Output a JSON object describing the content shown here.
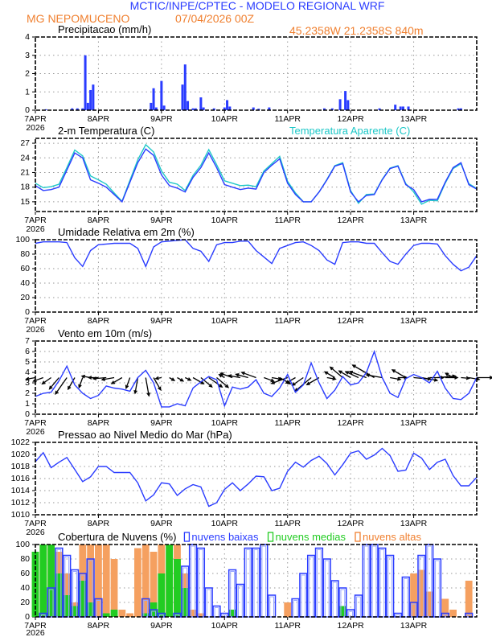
{
  "header": {
    "title": "MCTIC/INPE/CPTEC - MODELO REGIONAL WRF",
    "location": "MG NEPOMUCENO",
    "run": "07/04/2026 00Z",
    "coords": "45.2358W 21.2358S 840m"
  },
  "colors": {
    "title": "#2a3cff",
    "info": "#f08030",
    "line": "#2a3cff",
    "apparent": "#1fc8c8",
    "low": "#2a3cff",
    "mid": "#22cc22",
    "high": "#f5a060"
  },
  "x_tick_labels": [
    "7APR",
    "8APR",
    "9APR",
    "10APR",
    "11APR",
    "12APR",
    "13APR"
  ],
  "x_year_label": "2026",
  "chart_data": [
    {
      "type": "bar",
      "title": "Precipitacao (mm/h)",
      "ylim": [
        0,
        4
      ],
      "yticks": [
        "0",
        "1",
        "2",
        "3",
        "4"
      ],
      "grid": true,
      "x": [
        "07APR 04Z",
        "07APR 14Z",
        "07APR 16Z",
        "07APR 18Z",
        "07APR 19Z",
        "07APR 20Z",
        "07APR 21Z",
        "07APR 22Z",
        "08APR 16Z",
        "08APR 20Z",
        "08APR 21Z",
        "08APR 22Z",
        "09APR 00Z",
        "09APR 01Z",
        "09APR 08Z",
        "09APR 09Z",
        "09APR 10Z",
        "09APR 12Z",
        "09APR 13Z",
        "09APR 15Z",
        "09APR 16Z",
        "09APR 20Z",
        "10APR 00Z",
        "10APR 01Z",
        "10APR 02Z",
        "10APR 11Z",
        "10APR 13Z",
        "10APR 17Z",
        "11APR 14Z",
        "11APR 17Z",
        "11APR 20Z",
        "11APR 22Z",
        "11APR 23Z",
        "12APR 11Z",
        "12APR 17Z",
        "12APR 19Z",
        "12APR 20Z",
        "12APR 22Z",
        "13APR 17Z",
        "13APR 18Z"
      ],
      "values": [
        0.05,
        0.1,
        0.1,
        0.1,
        3.0,
        0.4,
        1.1,
        1.4,
        0.05,
        0.4,
        1.2,
        0.15,
        1.6,
        0.25,
        1.4,
        2.5,
        0.5,
        0.1,
        0.1,
        0.7,
        0.15,
        0.1,
        0.15,
        0.55,
        0.2,
        0.15,
        0.08,
        0.15,
        0.1,
        0.1,
        0.6,
        1.05,
        0.55,
        0.1,
        0.3,
        0.2,
        0.2,
        0.2,
        0.1,
        0.1
      ]
    },
    {
      "type": "line",
      "title": "2-m Temperatura (C)",
      "ylim": [
        13,
        28
      ],
      "yticks": [
        "15",
        "18",
        "21",
        "24",
        "27"
      ],
      "grid": true,
      "x": [
        "07APR 00Z",
        "07APR 03Z",
        "07APR 06Z",
        "07APR 09Z",
        "07APR 12Z",
        "07APR 15Z",
        "07APR 18Z",
        "07APR 21Z",
        "08APR 00Z",
        "08APR 03Z",
        "08APR 06Z",
        "08APR 09Z",
        "08APR 12Z",
        "08APR 15Z",
        "08APR 18Z",
        "08APR 21Z",
        "09APR 00Z",
        "09APR 03Z",
        "09APR 06Z",
        "09APR 09Z",
        "09APR 12Z",
        "09APR 15Z",
        "09APR 18Z",
        "09APR 21Z",
        "10APR 00Z",
        "10APR 03Z",
        "10APR 06Z",
        "10APR 09Z",
        "10APR 12Z",
        "10APR 15Z",
        "10APR 18Z",
        "10APR 21Z",
        "11APR 00Z",
        "11APR 03Z",
        "11APR 06Z",
        "11APR 09Z",
        "11APR 12Z",
        "11APR 15Z",
        "11APR 18Z",
        "11APR 21Z",
        "12APR 00Z",
        "12APR 03Z",
        "12APR 06Z",
        "12APR 09Z",
        "12APR 12Z",
        "12APR 15Z",
        "12APR 18Z",
        "12APR 21Z",
        "13APR 00Z",
        "13APR 03Z",
        "13APR 06Z",
        "13APR 09Z",
        "13APR 12Z",
        "13APR 15Z",
        "13APR 18Z",
        "13APR 21Z",
        "14APR 00Z"
      ],
      "series": [
        {
          "name": "Temperatura Aparente (C)",
          "color": "#1fc8c8",
          "values": [
            18.8,
            17.9,
            18.1,
            18.6,
            22.0,
            25.6,
            24.4,
            20.3,
            19.5,
            18.6,
            16.8,
            15.1,
            19.4,
            23.6,
            26.7,
            25.2,
            21.3,
            19.0,
            18.6,
            17.3,
            20.4,
            22.5,
            25.7,
            22.6,
            19.3,
            18.8,
            18.3,
            18.4,
            18.1,
            21.3,
            22.8,
            24.3,
            19.2,
            16.8,
            15.0,
            15.0,
            17.0,
            19.6,
            22.4,
            23.0,
            17.3,
            14.7,
            16.5,
            16.6,
            19.6,
            21.9,
            22.4,
            18.7,
            17.0,
            14.5,
            15.3,
            15.2,
            18.8,
            21.8,
            22.8,
            18.7,
            17.7
          ]
        },
        {
          "color": "#2a3cff",
          "values": [
            18.3,
            17.3,
            17.5,
            18.0,
            21.5,
            25.0,
            24.0,
            19.5,
            18.8,
            18.0,
            16.5,
            15.0,
            19.0,
            23.0,
            25.8,
            24.5,
            20.5,
            18.3,
            17.8,
            17.0,
            20.0,
            22.0,
            25.0,
            22.0,
            18.5,
            18.0,
            17.5,
            17.8,
            17.6,
            21.0,
            22.5,
            23.8,
            18.8,
            16.5,
            15.0,
            15.0,
            17.0,
            19.5,
            22.3,
            22.8,
            17.0,
            15.0,
            16.3,
            16.5,
            19.5,
            21.8,
            22.3,
            18.5,
            17.5,
            15.0,
            15.5,
            15.5,
            19.0,
            22.0,
            23.0,
            18.5,
            17.6
          ]
        }
      ]
    },
    {
      "type": "line",
      "title": "Umidade Relativa em 2m (%)",
      "ylim": [
        0,
        100
      ],
      "yticks": [
        "0",
        "20",
        "40",
        "60",
        "80",
        "100"
      ],
      "grid": true,
      "x": [
        "07APR 00Z",
        "07APR 03Z",
        "07APR 06Z",
        "07APR 09Z",
        "07APR 12Z",
        "07APR 15Z",
        "07APR 18Z",
        "07APR 21Z",
        "08APR 00Z",
        "08APR 03Z",
        "08APR 06Z",
        "08APR 09Z",
        "08APR 12Z",
        "08APR 15Z",
        "08APR 18Z",
        "08APR 21Z",
        "09APR 00Z",
        "09APR 03Z",
        "09APR 06Z",
        "09APR 09Z",
        "09APR 12Z",
        "09APR 15Z",
        "09APR 18Z",
        "09APR 21Z",
        "10APR 00Z",
        "10APR 03Z",
        "10APR 06Z",
        "10APR 09Z",
        "10APR 12Z",
        "10APR 15Z",
        "10APR 18Z",
        "10APR 21Z",
        "11APR 00Z",
        "11APR 03Z",
        "11APR 06Z",
        "11APR 09Z",
        "11APR 12Z",
        "11APR 15Z",
        "11APR 18Z",
        "11APR 21Z",
        "12APR 00Z",
        "12APR 03Z",
        "12APR 06Z",
        "12APR 09Z",
        "12APR 12Z",
        "12APR 15Z",
        "12APR 18Z",
        "12APR 21Z",
        "13APR 00Z",
        "13APR 03Z",
        "13APR 06Z",
        "13APR 09Z",
        "13APR 12Z",
        "13APR 15Z",
        "13APR 18Z",
        "13APR 21Z",
        "14APR 00Z"
      ],
      "series": [
        {
          "color": "#2a3cff",
          "values": [
            95,
            97,
            97,
            97,
            96,
            75,
            63,
            85,
            93,
            94,
            95,
            95,
            95,
            88,
            63,
            90,
            97,
            98,
            99,
            100,
            88,
            84,
            70,
            93,
            96,
            96,
            98,
            98,
            85,
            76,
            67,
            88,
            92,
            96,
            97,
            92,
            85,
            72,
            66,
            96,
            97,
            97,
            95,
            95,
            82,
            70,
            66,
            80,
            92,
            95,
            95,
            94,
            78,
            66,
            57,
            62,
            78
          ]
        }
      ]
    },
    {
      "type": "line",
      "title": "Vento em 10m (m/s)",
      "ylim": [
        0,
        7
      ],
      "yticks": [
        "0",
        "1",
        "2",
        "3",
        "4",
        "5",
        "6",
        "7"
      ],
      "grid": true,
      "x": [
        "07APR 00Z",
        "07APR 03Z",
        "07APR 06Z",
        "07APR 09Z",
        "07APR 12Z",
        "07APR 15Z",
        "07APR 18Z",
        "07APR 21Z",
        "08APR 00Z",
        "08APR 03Z",
        "08APR 06Z",
        "08APR 09Z",
        "08APR 12Z",
        "08APR 15Z",
        "08APR 18Z",
        "08APR 21Z",
        "09APR 00Z",
        "09APR 03Z",
        "09APR 06Z",
        "09APR 09Z",
        "09APR 12Z",
        "09APR 15Z",
        "09APR 18Z",
        "09APR 21Z",
        "10APR 00Z",
        "10APR 03Z",
        "10APR 06Z",
        "10APR 09Z",
        "10APR 12Z",
        "10APR 15Z",
        "10APR 18Z",
        "10APR 21Z",
        "11APR 00Z",
        "11APR 03Z",
        "11APR 06Z",
        "11APR 09Z",
        "11APR 12Z",
        "11APR 15Z",
        "11APR 18Z",
        "11APR 21Z",
        "12APR 00Z",
        "12APR 03Z",
        "12APR 06Z",
        "12APR 09Z",
        "12APR 12Z",
        "12APR 15Z",
        "12APR 18Z",
        "12APR 21Z",
        "13APR 00Z",
        "13APR 03Z",
        "13APR 06Z",
        "13APR 09Z",
        "13APR 12Z",
        "13APR 15Z",
        "13APR 18Z",
        "13APR 21Z",
        "14APR 00Z"
      ],
      "series": [
        {
          "color": "#2a3cff",
          "values": [
            1.7,
            2.0,
            2.1,
            3.2,
            4.6,
            2.8,
            2.0,
            1.5,
            1.8,
            2.7,
            2.5,
            2.4,
            2.2,
            3.5,
            4.2,
            3.0,
            0.7,
            0.7,
            1.0,
            0.8,
            2.5,
            3.1,
            3.6,
            3.3,
            0.8,
            2.6,
            2.4,
            2.6,
            3.3,
            2.0,
            1.7,
            2.5,
            3.8,
            2.1,
            2.8,
            4.9,
            3.0,
            1.5,
            2.3,
            3.6,
            2.8,
            3.0,
            4.0,
            6.0,
            3.5,
            2.0,
            1.6,
            3.4,
            3.8,
            3.5,
            3.0,
            4.1,
            2.5,
            1.5,
            1.4,
            2.0,
            3.5
          ]
        }
      ],
      "wind_vectors": {
        "color": "#000000",
        "direction_to_deg": [
          260,
          250,
          235,
          220,
          215,
          210,
          200,
          280,
          270,
          265,
          260,
          240,
          200,
          190,
          170,
          150,
          260,
          120,
          120,
          115,
          120,
          130,
          125,
          130,
          300,
          290,
          280,
          285,
          290,
          110,
          100,
          120,
          250,
          240,
          235,
          230,
          240,
          100,
          300,
          310,
          300,
          295,
          290,
          300,
          280,
          100,
          90,
          300,
          95,
          100,
          90,
          85,
          90,
          300,
          95,
          100,
          90
        ]
      }
    },
    {
      "type": "line",
      "title": "Pressao ao Nivel Medio do Mar (hPa)",
      "ylim": [
        1010,
        1022
      ],
      "yticks": [
        "1010",
        "1012",
        "1014",
        "1016",
        "1018",
        "1020",
        "1022"
      ],
      "grid": true,
      "x": [
        "07APR 00Z",
        "07APR 03Z",
        "07APR 06Z",
        "07APR 09Z",
        "07APR 12Z",
        "07APR 15Z",
        "07APR 18Z",
        "07APR 21Z",
        "08APR 00Z",
        "08APR 03Z",
        "08APR 06Z",
        "08APR 09Z",
        "08APR 12Z",
        "08APR 15Z",
        "08APR 18Z",
        "08APR 21Z",
        "09APR 00Z",
        "09APR 03Z",
        "09APR 06Z",
        "09APR 09Z",
        "09APR 12Z",
        "09APR 15Z",
        "09APR 18Z",
        "09APR 21Z",
        "10APR 00Z",
        "10APR 03Z",
        "10APR 06Z",
        "10APR 09Z",
        "10APR 12Z",
        "10APR 15Z",
        "10APR 18Z",
        "10APR 21Z",
        "11APR 00Z",
        "11APR 03Z",
        "11APR 06Z",
        "11APR 09Z",
        "11APR 12Z",
        "11APR 15Z",
        "11APR 18Z",
        "11APR 21Z",
        "12APR 00Z",
        "12APR 03Z",
        "12APR 06Z",
        "12APR 09Z",
        "12APR 12Z",
        "12APR 15Z",
        "12APR 18Z",
        "12APR 21Z",
        "13APR 00Z",
        "13APR 03Z",
        "13APR 06Z",
        "13APR 09Z",
        "13APR 12Z",
        "13APR 15Z",
        "13APR 18Z",
        "13APR 21Z",
        "14APR 00Z"
      ],
      "series": [
        {
          "color": "#2a3cff",
          "values": [
            1018.8,
            1020.3,
            1017.8,
            1018.7,
            1019.5,
            1017.5,
            1015.5,
            1016.3,
            1018.0,
            1018.0,
            1017.0,
            1017.0,
            1017.0,
            1015.3,
            1012.3,
            1013.3,
            1015.3,
            1015.1,
            1013.2,
            1014.3,
            1015.0,
            1014.6,
            1011.4,
            1012.0,
            1014.2,
            1015.3,
            1014.0,
            1015.1,
            1016.4,
            1016.3,
            1014.0,
            1014.4,
            1017.2,
            1018.7,
            1017.9,
            1019.0,
            1019.7,
            1018.5,
            1016.6,
            1018.3,
            1020.2,
            1020.6,
            1019.2,
            1019.9,
            1021.0,
            1019.8,
            1017.2,
            1017.4,
            1020.2,
            1019.4,
            1017.5,
            1018.7,
            1019.2,
            1016.5,
            1014.8,
            1014.8,
            1016.2
          ]
        }
      ]
    },
    {
      "type": "bar",
      "title": "Cobertura de Nuvens (%)",
      "ylim": [
        0,
        100
      ],
      "yticks": [
        "0",
        "20",
        "40",
        "60",
        "80",
        "100"
      ],
      "grid": true,
      "legend": "top",
      "x": [
        "07APR 00Z",
        "07APR 03Z",
        "07APR 06Z",
        "07APR 09Z",
        "07APR 12Z",
        "07APR 15Z",
        "07APR 18Z",
        "07APR 21Z",
        "08APR 00Z",
        "08APR 03Z",
        "08APR 06Z",
        "08APR 09Z",
        "08APR 12Z",
        "08APR 15Z",
        "08APR 18Z",
        "08APR 21Z",
        "09APR 00Z",
        "09APR 03Z",
        "09APR 06Z",
        "09APR 09Z",
        "09APR 12Z",
        "09APR 15Z",
        "09APR 18Z",
        "09APR 21Z",
        "10APR 00Z",
        "10APR 03Z",
        "10APR 06Z",
        "10APR 09Z",
        "10APR 12Z",
        "10APR 15Z",
        "10APR 18Z",
        "10APR 21Z",
        "11APR 00Z",
        "11APR 03Z",
        "11APR 06Z",
        "11APR 09Z",
        "11APR 12Z",
        "11APR 15Z",
        "11APR 18Z",
        "11APR 21Z",
        "12APR 00Z",
        "12APR 03Z",
        "12APR 06Z",
        "12APR 09Z",
        "12APR 12Z",
        "12APR 15Z",
        "12APR 18Z",
        "12APR 21Z",
        "13APR 00Z",
        "13APR 03Z",
        "13APR 06Z",
        "13APR 09Z",
        "13APR 12Z",
        "13APR 15Z",
        "13APR 18Z",
        "13APR 21Z",
        "14APR 00Z"
      ],
      "series": [
        {
          "name": "nuvens altas",
          "color": "#f5a060",
          "values": [
            90,
            100,
            95,
            90,
            60,
            20,
            100,
            100,
            100,
            100,
            80,
            10,
            5,
            95,
            100,
            90,
            100,
            100,
            100,
            60,
            10,
            5,
            0,
            0,
            0,
            0,
            0,
            0,
            0,
            0,
            0,
            0,
            20,
            0,
            0,
            0,
            0,
            0,
            0,
            0,
            0,
            0,
            0,
            0,
            0,
            0,
            0,
            0,
            60,
            65,
            35,
            0,
            25,
            10,
            0,
            50,
            0
          ]
        },
        {
          "name": "nuvens medias",
          "color": "#22cc22",
          "values": [
            90,
            100,
            100,
            60,
            30,
            15,
            50,
            20,
            0,
            5,
            10,
            0,
            0,
            0,
            5,
            20,
            60,
            100,
            80,
            40,
            0,
            0,
            0,
            0,
            0,
            10,
            0,
            0,
            0,
            0,
            0,
            0,
            0,
            0,
            0,
            0,
            0,
            0,
            0,
            15,
            0,
            0,
            0,
            0,
            0,
            0,
            0,
            0,
            0,
            0,
            0,
            0,
            0,
            0,
            0,
            0,
            0
          ]
        },
        {
          "name": "nuvens baixas",
          "color": "#2a3cff",
          "values": [
            0,
            5,
            40,
            95,
            85,
            65,
            60,
            80,
            25,
            0,
            0,
            0,
            0,
            0,
            25,
            10,
            5,
            0,
            5,
            70,
            100,
            95,
            40,
            15,
            5,
            65,
            45,
            95,
            95,
            100,
            30,
            0,
            0,
            25,
            60,
            85,
            95,
            80,
            50,
            40,
            10,
            30,
            100,
            100,
            95,
            85,
            5,
            55,
            20,
            85,
            100,
            80,
            5,
            0,
            0,
            5,
            0
          ]
        }
      ]
    }
  ]
}
